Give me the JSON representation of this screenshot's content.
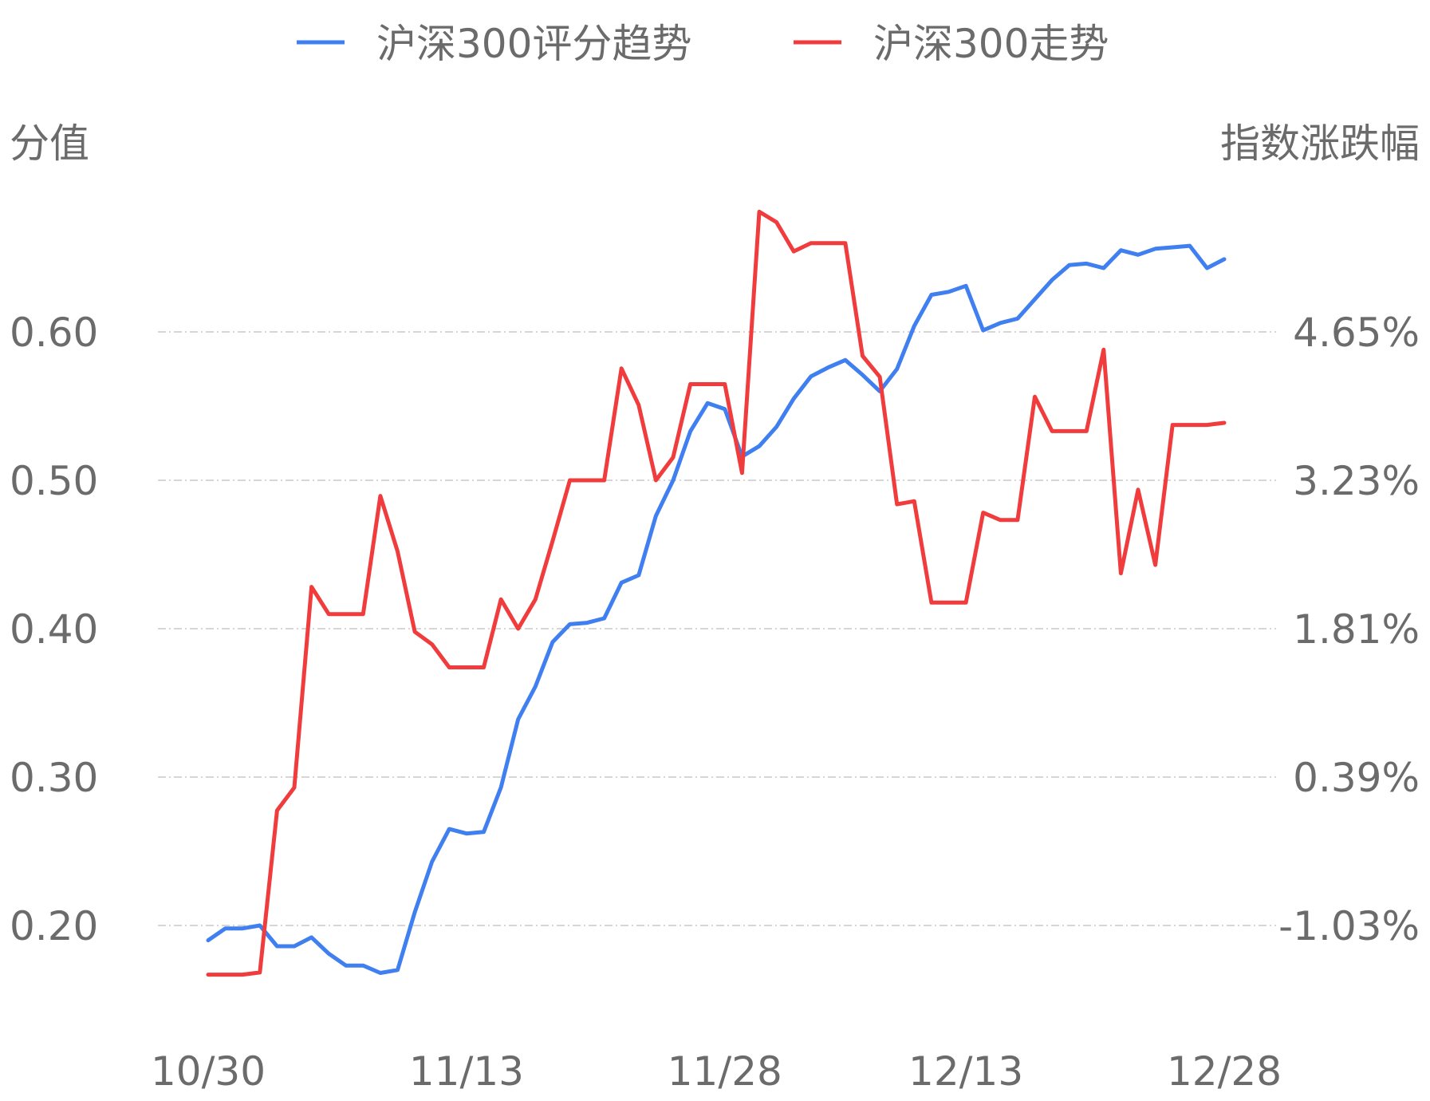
{
  "chart_data": {
    "type": "line",
    "legend_position": "top-center",
    "grid": true,
    "y_left_label": "分值",
    "y_right_label": "指数涨跌幅",
    "y_left_ticks": [
      "0.20",
      "0.30",
      "0.40",
      "0.50",
      "0.60"
    ],
    "y_right_ticks": [
      "-1.03%",
      "0.39%",
      "1.81%",
      "3.23%",
      "4.65%"
    ],
    "ylim_left": [
      0.125,
      0.66
    ],
    "ylim_right": [
      -1.68,
      6.05
    ],
    "x_tick_labels": [
      "10/30",
      "11/13",
      "11/28",
      "12/13",
      "12/28"
    ],
    "x_count": 60,
    "series": [
      {
        "name": "沪深300评分趋势",
        "color": "#3f7ff0",
        "axis": "left",
        "values": [
          0.19,
          0.198,
          0.198,
          0.2,
          0.186,
          0.186,
          0.192,
          0.181,
          0.173,
          0.173,
          0.168,
          0.17,
          0.209,
          0.243,
          0.265,
          0.262,
          0.263,
          0.293,
          0.339,
          0.361,
          0.391,
          0.403,
          0.404,
          0.407,
          0.431,
          0.436,
          0.476,
          0.5,
          0.533,
          0.552,
          0.548,
          0.516,
          0.523,
          0.536,
          0.555,
          0.57,
          0.576,
          0.581,
          0.571,
          0.56,
          0.575,
          0.604,
          0.625,
          0.627,
          0.631,
          0.601,
          0.606,
          0.609,
          0.622,
          0.635,
          0.645,
          0.646,
          0.643,
          0.655,
          0.652,
          0.656,
          0.657,
          0.658,
          0.643,
          0.649
        ]
      },
      {
        "name": "沪深300走势",
        "color": "#f03c3c",
        "axis": "right",
        "values": [
          -1.5,
          -1.5,
          -1.5,
          -1.48,
          0.07,
          0.29,
          2.21,
          1.95,
          1.95,
          1.95,
          3.08,
          2.55,
          1.78,
          1.66,
          1.44,
          1.44,
          1.44,
          2.09,
          1.81,
          2.09,
          2.65,
          3.23,
          3.23,
          3.23,
          4.3,
          3.95,
          3.23,
          3.45,
          4.15,
          4.15,
          4.15,
          3.3,
          5.8,
          5.7,
          5.42,
          5.5,
          5.5,
          5.5,
          4.42,
          4.22,
          3.0,
          3.03,
          2.06,
          2.06,
          2.06,
          2.92,
          2.85,
          2.85,
          4.03,
          3.7,
          3.7,
          3.7,
          4.48,
          2.34,
          3.14,
          2.42,
          3.76,
          3.76,
          3.76,
          3.78
        ]
      }
    ]
  }
}
